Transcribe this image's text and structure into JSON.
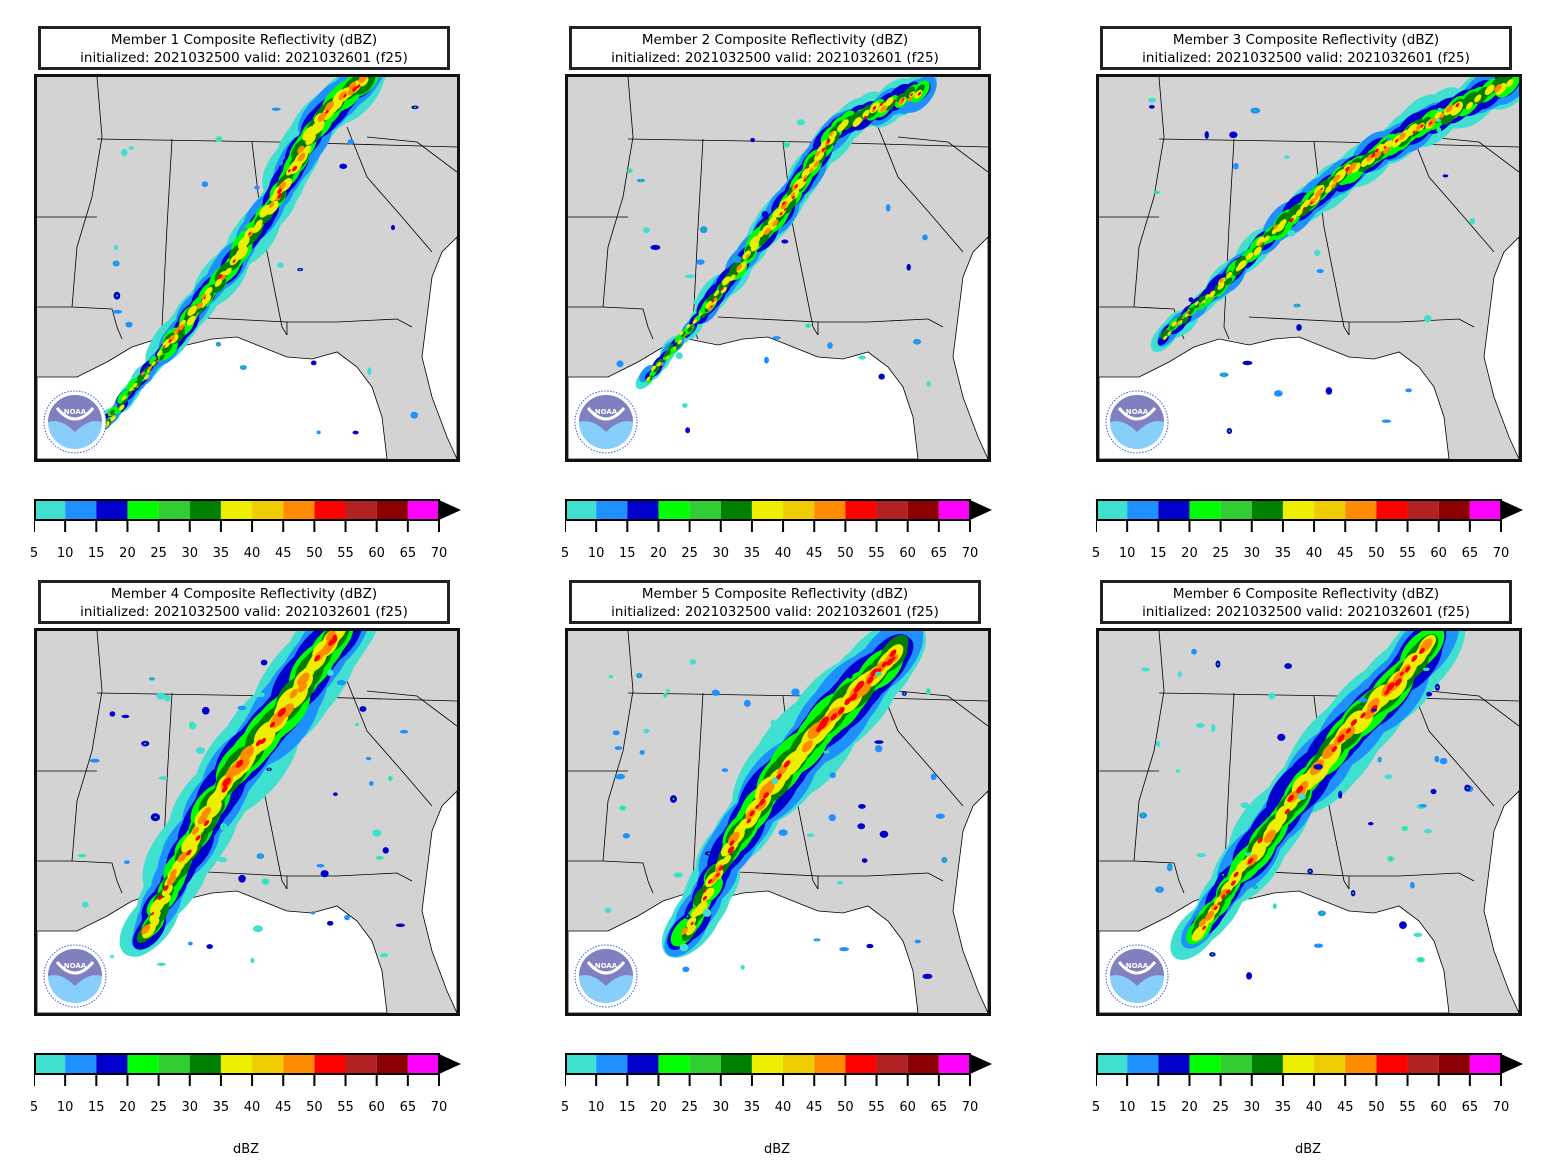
{
  "panels": [
    {
      "title": "Member 1 Composite Reflectivity (dBZ)",
      "subtitle": "initialized: 2021032500 valid: 2021032601 (f25)"
    },
    {
      "title": "Member 2 Composite Reflectivity (dBZ)",
      "subtitle": "initialized: 2021032500 valid: 2021032601 (f25)"
    },
    {
      "title": "Member 3 Composite Reflectivity (dBZ)",
      "subtitle": "initialized: 2021032500 valid: 2021032601 (f25)"
    },
    {
      "title": "Member 4 Composite Reflectivity (dBZ)",
      "subtitle": "initialized: 2021032500 valid: 2021032601 (f25)"
    },
    {
      "title": "Member 5 Composite Reflectivity (dBZ)",
      "subtitle": "initialized: 2021032500 valid: 2021032601 (f25)"
    },
    {
      "title": "Member 6 Composite Reflectivity (dBZ)",
      "subtitle": "initialized: 2021032500 valid: 2021032601 (f25)"
    }
  ],
  "colorbar": {
    "ticks": [
      "5",
      "10",
      "15",
      "20",
      "25",
      "30",
      "35",
      "40",
      "45",
      "50",
      "55",
      "60",
      "65",
      "70"
    ],
    "colors": [
      "#40e0d0",
      "#1e90ff",
      "#0000cd",
      "#00ff00",
      "#32cd32",
      "#008000",
      "#eeee00",
      "#eecc00",
      "#ff8c00",
      "#ff0000",
      "#b22222",
      "#8b0000",
      "#ff00ff"
    ],
    "extend_color": "#000000",
    "unit": "dBZ"
  },
  "logo": {
    "text": "NOAA",
    "icon": "noaa-logo-icon"
  },
  "colors": {
    "land": "#d3d3d3",
    "water": "#ffffff",
    "border": "#000000"
  }
}
